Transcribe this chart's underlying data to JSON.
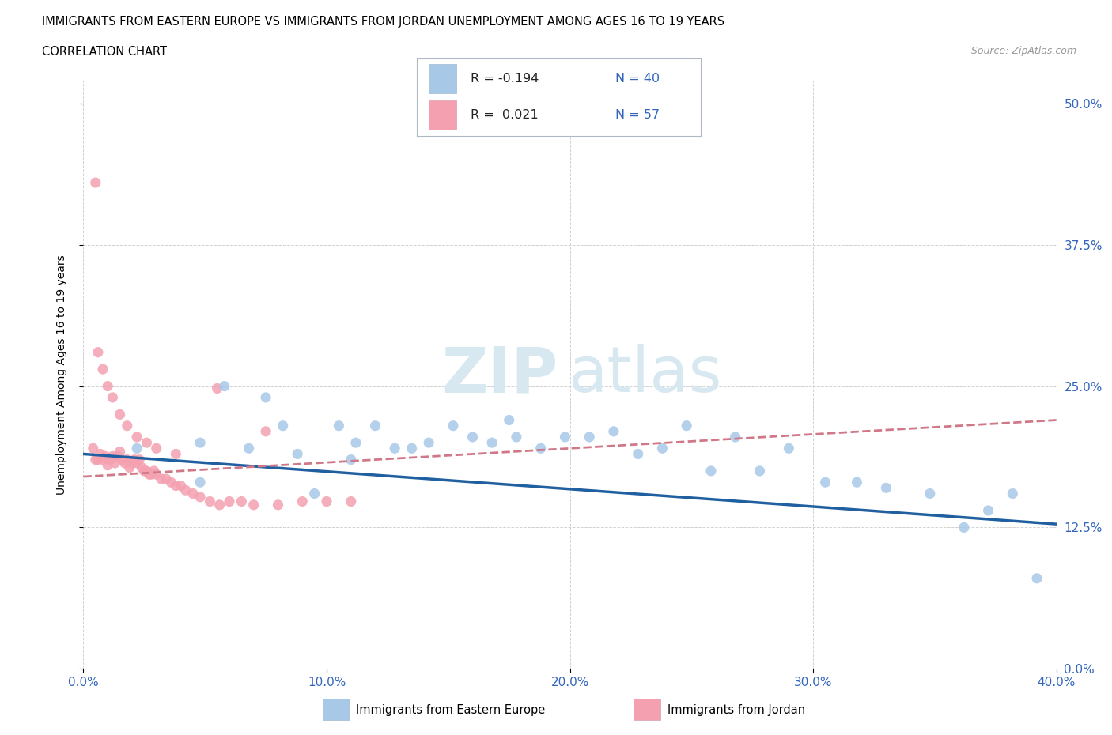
{
  "title_line1": "IMMIGRANTS FROM EASTERN EUROPE VS IMMIGRANTS FROM JORDAN UNEMPLOYMENT AMONG AGES 16 TO 19 YEARS",
  "title_line2": "CORRELATION CHART",
  "source": "Source: ZipAtlas.com",
  "ylabel": "Unemployment Among Ages 16 to 19 years",
  "xlim": [
    0.0,
    0.4
  ],
  "ylim": [
    0.0,
    0.52
  ],
  "yticks": [
    0.0,
    0.125,
    0.25,
    0.375,
    0.5
  ],
  "ytick_labels": [
    "0.0%",
    "12.5%",
    "25.0%",
    "37.5%",
    "50.0%"
  ],
  "xticks": [
    0.0,
    0.1,
    0.2,
    0.3,
    0.4
  ],
  "xtick_labels": [
    "0.0%",
    "10.0%",
    "20.0%",
    "30.0%",
    "40.0%"
  ],
  "blue_scatter_color": "#a8c8e8",
  "pink_scatter_color": "#f4a0b0",
  "blue_line_color": "#2060a0",
  "pink_line_color": "#d07888",
  "background_color": "#ffffff",
  "grid_color": "#cccccc",
  "blue_R": -0.194,
  "blue_N": 40,
  "pink_R": 0.021,
  "pink_N": 57,
  "blue_x": [
    0.022,
    0.048,
    0.058,
    0.075,
    0.082,
    0.095,
    0.105,
    0.112,
    0.12,
    0.128,
    0.135,
    0.142,
    0.152,
    0.16,
    0.168,
    0.178,
    0.188,
    0.198,
    0.208,
    0.218,
    0.228,
    0.238,
    0.248,
    0.258,
    0.268,
    0.278,
    0.29,
    0.305,
    0.318,
    0.33,
    0.348,
    0.362,
    0.372,
    0.382,
    0.392,
    0.048,
    0.068,
    0.088,
    0.11,
    0.175
  ],
  "blue_y": [
    0.195,
    0.165,
    0.25,
    0.24,
    0.215,
    0.155,
    0.215,
    0.2,
    0.215,
    0.195,
    0.195,
    0.2,
    0.215,
    0.205,
    0.2,
    0.205,
    0.195,
    0.205,
    0.205,
    0.21,
    0.19,
    0.195,
    0.215,
    0.175,
    0.205,
    0.175,
    0.195,
    0.165,
    0.165,
    0.16,
    0.155,
    0.125,
    0.14,
    0.155,
    0.08,
    0.2,
    0.195,
    0.19,
    0.185,
    0.22
  ],
  "pink_x": [
    0.004,
    0.005,
    0.006,
    0.007,
    0.008,
    0.009,
    0.01,
    0.011,
    0.012,
    0.013,
    0.014,
    0.015,
    0.016,
    0.017,
    0.018,
    0.019,
    0.02,
    0.021,
    0.022,
    0.023,
    0.024,
    0.025,
    0.026,
    0.027,
    0.028,
    0.029,
    0.03,
    0.032,
    0.034,
    0.036,
    0.038,
    0.04,
    0.042,
    0.045,
    0.048,
    0.052,
    0.056,
    0.06,
    0.065,
    0.07,
    0.08,
    0.09,
    0.1,
    0.11,
    0.006,
    0.008,
    0.01,
    0.012,
    0.015,
    0.018,
    0.022,
    0.026,
    0.03,
    0.038,
    0.055,
    0.075,
    0.005
  ],
  "pink_y": [
    0.195,
    0.185,
    0.185,
    0.19,
    0.185,
    0.188,
    0.18,
    0.185,
    0.188,
    0.182,
    0.188,
    0.192,
    0.185,
    0.182,
    0.185,
    0.178,
    0.182,
    0.185,
    0.182,
    0.185,
    0.178,
    0.175,
    0.175,
    0.172,
    0.172,
    0.175,
    0.172,
    0.168,
    0.168,
    0.165,
    0.162,
    0.162,
    0.158,
    0.155,
    0.152,
    0.148,
    0.145,
    0.148,
    0.148,
    0.145,
    0.145,
    0.148,
    0.148,
    0.148,
    0.28,
    0.265,
    0.25,
    0.24,
    0.225,
    0.215,
    0.205,
    0.2,
    0.195,
    0.19,
    0.248,
    0.21,
    0.43
  ],
  "watermark_zip": "ZIP",
  "watermark_atlas": "atlas"
}
